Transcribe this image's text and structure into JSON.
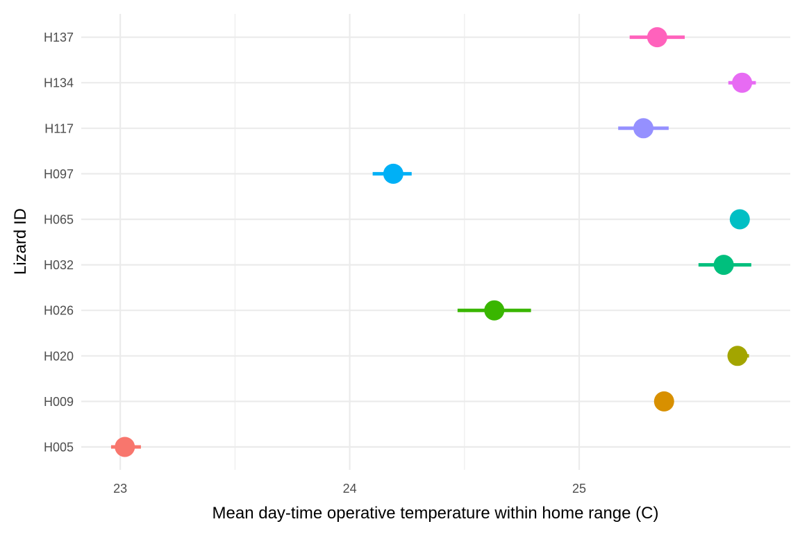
{
  "chart_data": {
    "type": "scatter",
    "title": "",
    "xlabel": "Mean day-time operative temperature within home range (C)",
    "ylabel": "Lizard ID",
    "xlim": [
      22.83,
      25.92
    ],
    "x_ticks": [
      23,
      24,
      25
    ],
    "x_tick_labels": [
      "23",
      "24",
      "25"
    ],
    "grid": true,
    "legend": "none",
    "categories": [
      "H005",
      "H009",
      "H020",
      "H026",
      "H032",
      "H065",
      "H097",
      "H117",
      "H134",
      "H137"
    ],
    "points": [
      {
        "id": "H005",
        "mean": 23.02,
        "low": 22.96,
        "high": 23.09,
        "color": "#F8766D"
      },
      {
        "id": "H009",
        "mean": 25.37,
        "low": 25.37,
        "high": 25.37,
        "color": "#D89000"
      },
      {
        "id": "H020",
        "mean": 25.69,
        "low": 25.65,
        "high": 25.74,
        "color": "#A3A500"
      },
      {
        "id": "H026",
        "mean": 24.63,
        "low": 24.47,
        "high": 24.79,
        "color": "#39B600"
      },
      {
        "id": "H032",
        "mean": 25.63,
        "low": 25.52,
        "high": 25.75,
        "color": "#00BF7D"
      },
      {
        "id": "H065",
        "mean": 25.7,
        "low": 25.7,
        "high": 25.7,
        "color": "#00BFC4"
      },
      {
        "id": "H097",
        "mean": 24.19,
        "low": 24.1,
        "high": 24.27,
        "color": "#00B0F6"
      },
      {
        "id": "H117",
        "mean": 25.28,
        "low": 25.17,
        "high": 25.39,
        "color": "#9590FF"
      },
      {
        "id": "H134",
        "mean": 25.71,
        "low": 25.65,
        "high": 25.77,
        "color": "#E76BF3"
      },
      {
        "id": "H137",
        "mean": 25.34,
        "low": 25.22,
        "high": 25.46,
        "color": "#FF62BC"
      }
    ]
  }
}
